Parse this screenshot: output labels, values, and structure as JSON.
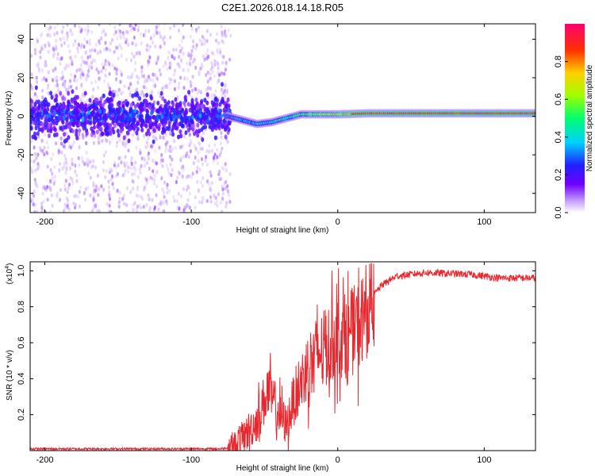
{
  "title": "C2E1.2026.018.14.18.R05",
  "chart_data": [
    {
      "type": "heatmap",
      "id": "spectrogram",
      "xlabel": "Height of straight line (km)",
      "ylabel": "Frequency (Hz)",
      "xlim": [
        -210,
        135
      ],
      "ylim": [
        -50,
        48
      ],
      "xticks": [
        -200,
        -100,
        0,
        100
      ],
      "yticks": [
        -40,
        -20,
        0,
        20,
        40
      ],
      "colorbar": {
        "label": "Normalized spectral amplitude",
        "range": [
          0,
          1
        ],
        "ticks": [
          0.0,
          0.2,
          0.4,
          0.6,
          0.8
        ],
        "tick_labels": [
          "0.0",
          "0.2",
          "0.4",
          "0.6",
          "0.8"
        ],
        "colormap": [
          "#ffffff",
          "#cc99ff",
          "#7b00ff",
          "#2020ff",
          "#00ccff",
          "#00ff66",
          "#aaff00",
          "#ffcc00",
          "#ff3300",
          "#ff0066"
        ]
      },
      "ridge": [
        {
          "x": -210,
          "f": 0
        },
        {
          "x": -75,
          "f": 0
        },
        {
          "x": -65,
          "f": -2
        },
        {
          "x": -55,
          "f": -4
        },
        {
          "x": -45,
          "f": -3
        },
        {
          "x": -35,
          "f": -1
        },
        {
          "x": -25,
          "f": 1
        },
        {
          "x": -10,
          "f": 1
        },
        {
          "x": 0,
          "f": 1
        },
        {
          "x": 20,
          "f": 1.5
        },
        {
          "x": 50,
          "f": 1.5
        },
        {
          "x": 90,
          "f": 1.5
        },
        {
          "x": 135,
          "f": 1.5
        }
      ],
      "noise_region": {
        "xmin": -210,
        "xmax": -73
      }
    },
    {
      "type": "line",
      "id": "snr",
      "xlabel": "Height of straight line (km)",
      "ylabel": "SNR (10 * v/v)",
      "y_multiplier": "(x10",
      "y_multiplier_exp": "4",
      "y_multiplier_close": ")",
      "xlim": [
        -210,
        135
      ],
      "ylim": [
        0,
        1.05
      ],
      "xticks": [
        -200,
        -100,
        0,
        100
      ],
      "yticks": [
        0.2,
        0.4,
        0.6,
        0.8,
        1.0
      ],
      "ytick_labels": [
        "0.2",
        "0.4",
        "0.6",
        "0.8",
        "1.0"
      ],
      "color": "#e8282e",
      "envelope": [
        {
          "x": -210,
          "y": 0.01
        },
        {
          "x": -80,
          "y": 0.01
        },
        {
          "x": -72,
          "y": 0.02
        },
        {
          "x": -65,
          "y": 0.08
        },
        {
          "x": -55,
          "y": 0.18
        },
        {
          "x": -48,
          "y": 0.35
        },
        {
          "x": -40,
          "y": 0.22
        },
        {
          "x": -35,
          "y": 0.15
        },
        {
          "x": -30,
          "y": 0.3
        },
        {
          "x": -25,
          "y": 0.4
        },
        {
          "x": -20,
          "y": 0.5
        },
        {
          "x": -15,
          "y": 0.55
        },
        {
          "x": -10,
          "y": 0.58
        },
        {
          "x": -5,
          "y": 0.62
        },
        {
          "x": 0,
          "y": 0.68
        },
        {
          "x": 5,
          "y": 0.66
        },
        {
          "x": 15,
          "y": 0.72
        },
        {
          "x": 20,
          "y": 0.82
        },
        {
          "x": 30,
          "y": 0.92
        },
        {
          "x": 40,
          "y": 0.97
        },
        {
          "x": 60,
          "y": 0.99
        },
        {
          "x": 90,
          "y": 0.98
        },
        {
          "x": 110,
          "y": 0.96
        },
        {
          "x": 135,
          "y": 0.96
        }
      ]
    }
  ]
}
